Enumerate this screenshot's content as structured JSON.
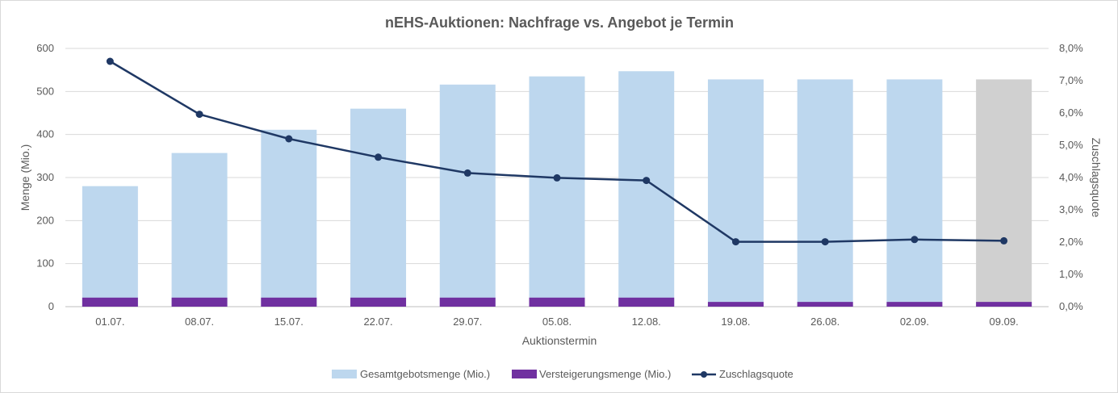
{
  "chart_data": {
    "type": "bar",
    "title": "nEHS-Auktionen: Nachfrage vs. Angebot je Termin",
    "xlabel": "Auktionstermin",
    "ylabel": "Menge (Mio.)",
    "y2label": "Zuschlagsquote",
    "ylim": [
      0,
      600
    ],
    "y_ticks": [
      "0",
      "100",
      "200",
      "300",
      "400",
      "500",
      "600"
    ],
    "y2lim": [
      0,
      0.08
    ],
    "y2_ticks": [
      "0,0%",
      "1,0%",
      "2,0%",
      "3,0%",
      "4,0%",
      "5,0%",
      "6,0%",
      "7,0%",
      "8,0%"
    ],
    "categories": [
      "01.07.",
      "08.07.",
      "15.07.",
      "22.07.",
      "29.07.",
      "05.08.",
      "12.08.",
      "19.08.",
      "26.08.",
      "02.09.",
      "09.09."
    ],
    "series": [
      {
        "name": "Gesamtgebotsmenge (Mio.)",
        "kind": "bar",
        "color": "#bdd7ee",
        "highlight_color": "#d0d0d0",
        "highlight_index": 10,
        "values": [
          280,
          357,
          411,
          460,
          516,
          535,
          547,
          528,
          528,
          528,
          528
        ]
      },
      {
        "name": "Versteigerungsmenge (Mio.)",
        "kind": "bar",
        "color": "#7030a0",
        "values": [
          21,
          21,
          21,
          21,
          21,
          21,
          21,
          11,
          11,
          11,
          11
        ]
      },
      {
        "name": "Zuschlagsquote",
        "kind": "line",
        "axis": "secondary",
        "color": "#1f3864",
        "values": [
          0.076,
          0.0596,
          0.052,
          0.0463,
          0.0414,
          0.0399,
          0.0391,
          0.0201,
          0.0201,
          0.0208,
          0.0204
        ]
      }
    ],
    "legend_position": "bottom",
    "grid": true
  }
}
